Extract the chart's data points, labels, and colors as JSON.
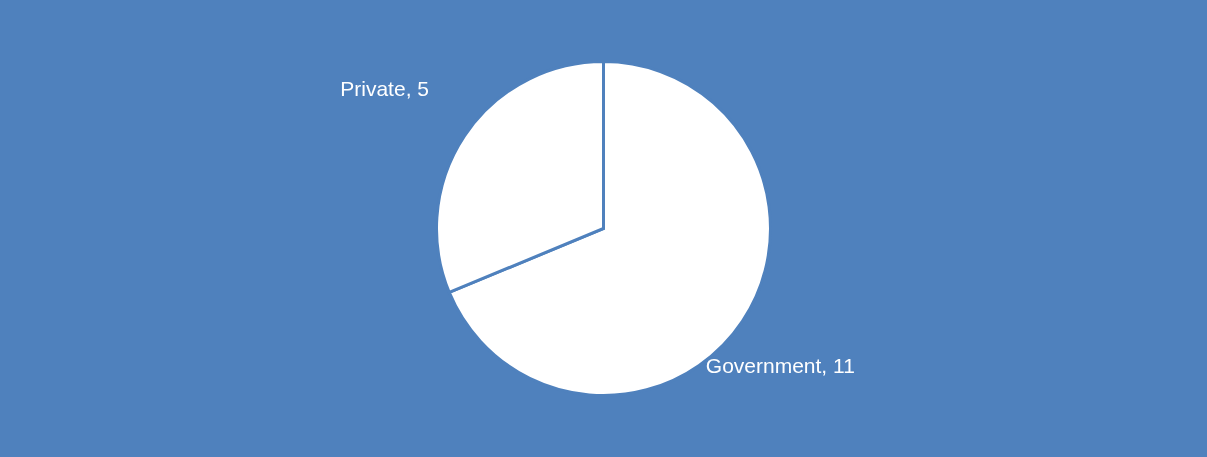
{
  "chart_data": {
    "type": "pie",
    "categories": [
      "Government",
      "Private"
    ],
    "values": [
      11,
      5
    ],
    "value_labels": [
      ", 11",
      ", 5"
    ],
    "colors": [
      "#ffffff",
      "#ffffff"
    ],
    "legend": false
  }
}
